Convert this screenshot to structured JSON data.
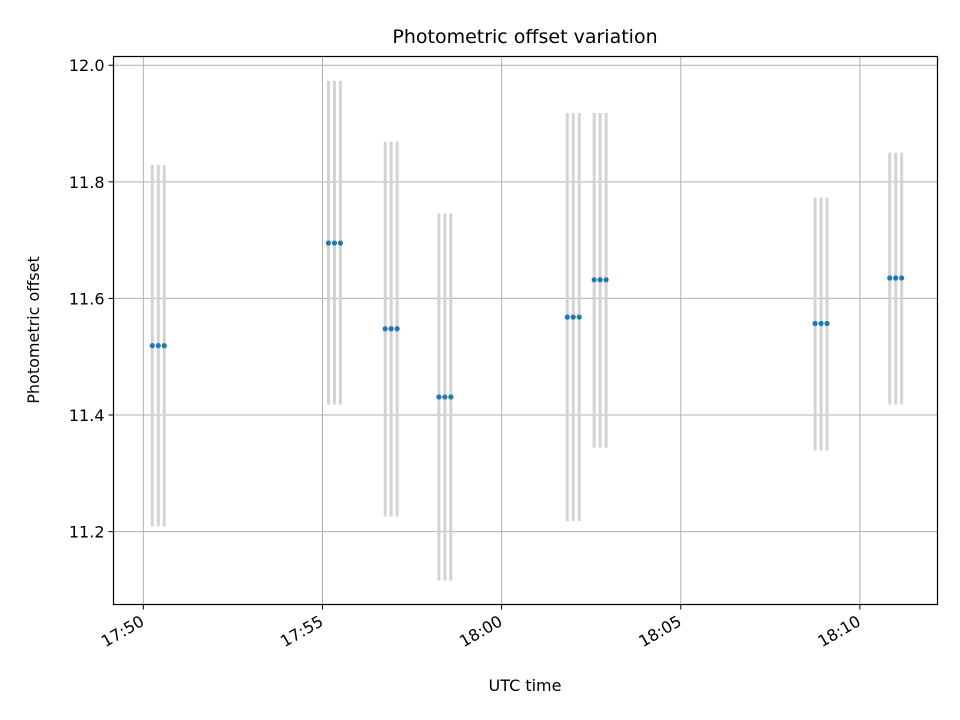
{
  "chart_data": {
    "type": "scatter",
    "title": "Photometric offset variation",
    "xlabel": "UTC time",
    "ylabel": "Photometric offset",
    "grid": true,
    "ylim": [
      11.075,
      12.015
    ],
    "xlim": [
      "17:49:10",
      "18:12:10"
    ],
    "x_ticks": [
      "17:50",
      "17:55",
      "18:00",
      "18:05",
      "18:10"
    ],
    "y_ticks": [
      "11.2",
      "11.4",
      "11.6",
      "11.8",
      "12.0"
    ],
    "colors": {
      "point": "#1f77b4",
      "errorbar": "#d3d3d3",
      "grid": "#b0b0b0"
    },
    "series": [
      {
        "points": [
          {
            "x": "17:50:15",
            "y": 11.519,
            "yerr_low": 11.209,
            "yerr_high": 11.829
          },
          {
            "x": "17:50:25",
            "y": 11.519,
            "yerr_low": 11.209,
            "yerr_high": 11.829
          },
          {
            "x": "17:50:35",
            "y": 11.519,
            "yerr_low": 11.209,
            "yerr_high": 11.829
          },
          {
            "x": "17:55:10",
            "y": 11.695,
            "yerr_low": 11.418,
            "yerr_high": 11.973
          },
          {
            "x": "17:55:20",
            "y": 11.695,
            "yerr_low": 11.418,
            "yerr_high": 11.973
          },
          {
            "x": "17:55:30",
            "y": 11.695,
            "yerr_low": 11.418,
            "yerr_high": 11.973
          },
          {
            "x": "17:56:45",
            "y": 11.548,
            "yerr_low": 11.226,
            "yerr_high": 11.869
          },
          {
            "x": "17:56:55",
            "y": 11.548,
            "yerr_low": 11.226,
            "yerr_high": 11.869
          },
          {
            "x": "17:57:05",
            "y": 11.548,
            "yerr_low": 11.226,
            "yerr_high": 11.869
          },
          {
            "x": "17:58:15",
            "y": 11.431,
            "yerr_low": 11.116,
            "yerr_high": 11.746
          },
          {
            "x": "17:58:25",
            "y": 11.431,
            "yerr_low": 11.116,
            "yerr_high": 11.746
          },
          {
            "x": "17:58:35",
            "y": 11.431,
            "yerr_low": 11.116,
            "yerr_high": 11.746
          },
          {
            "x": "18:01:50",
            "y": 11.568,
            "yerr_low": 11.218,
            "yerr_high": 11.918
          },
          {
            "x": "18:02:00",
            "y": 11.568,
            "yerr_low": 11.218,
            "yerr_high": 11.918
          },
          {
            "x": "18:02:10",
            "y": 11.568,
            "yerr_low": 11.218,
            "yerr_high": 11.918
          },
          {
            "x": "18:02:35",
            "y": 11.632,
            "yerr_low": 11.344,
            "yerr_high": 11.918
          },
          {
            "x": "18:02:45",
            "y": 11.632,
            "yerr_low": 11.344,
            "yerr_high": 11.918
          },
          {
            "x": "18:02:55",
            "y": 11.632,
            "yerr_low": 11.344,
            "yerr_high": 11.918
          },
          {
            "x": "18:08:45",
            "y": 11.557,
            "yerr_low": 11.339,
            "yerr_high": 11.773
          },
          {
            "x": "18:08:55",
            "y": 11.557,
            "yerr_low": 11.339,
            "yerr_high": 11.773
          },
          {
            "x": "18:09:05",
            "y": 11.557,
            "yerr_low": 11.339,
            "yerr_high": 11.773
          },
          {
            "x": "18:10:50",
            "y": 11.635,
            "yerr_low": 11.418,
            "yerr_high": 11.85
          },
          {
            "x": "18:11:00",
            "y": 11.635,
            "yerr_low": 11.418,
            "yerr_high": 11.85
          },
          {
            "x": "18:11:10",
            "y": 11.635,
            "yerr_low": 11.418,
            "yerr_high": 11.85
          }
        ]
      }
    ]
  }
}
